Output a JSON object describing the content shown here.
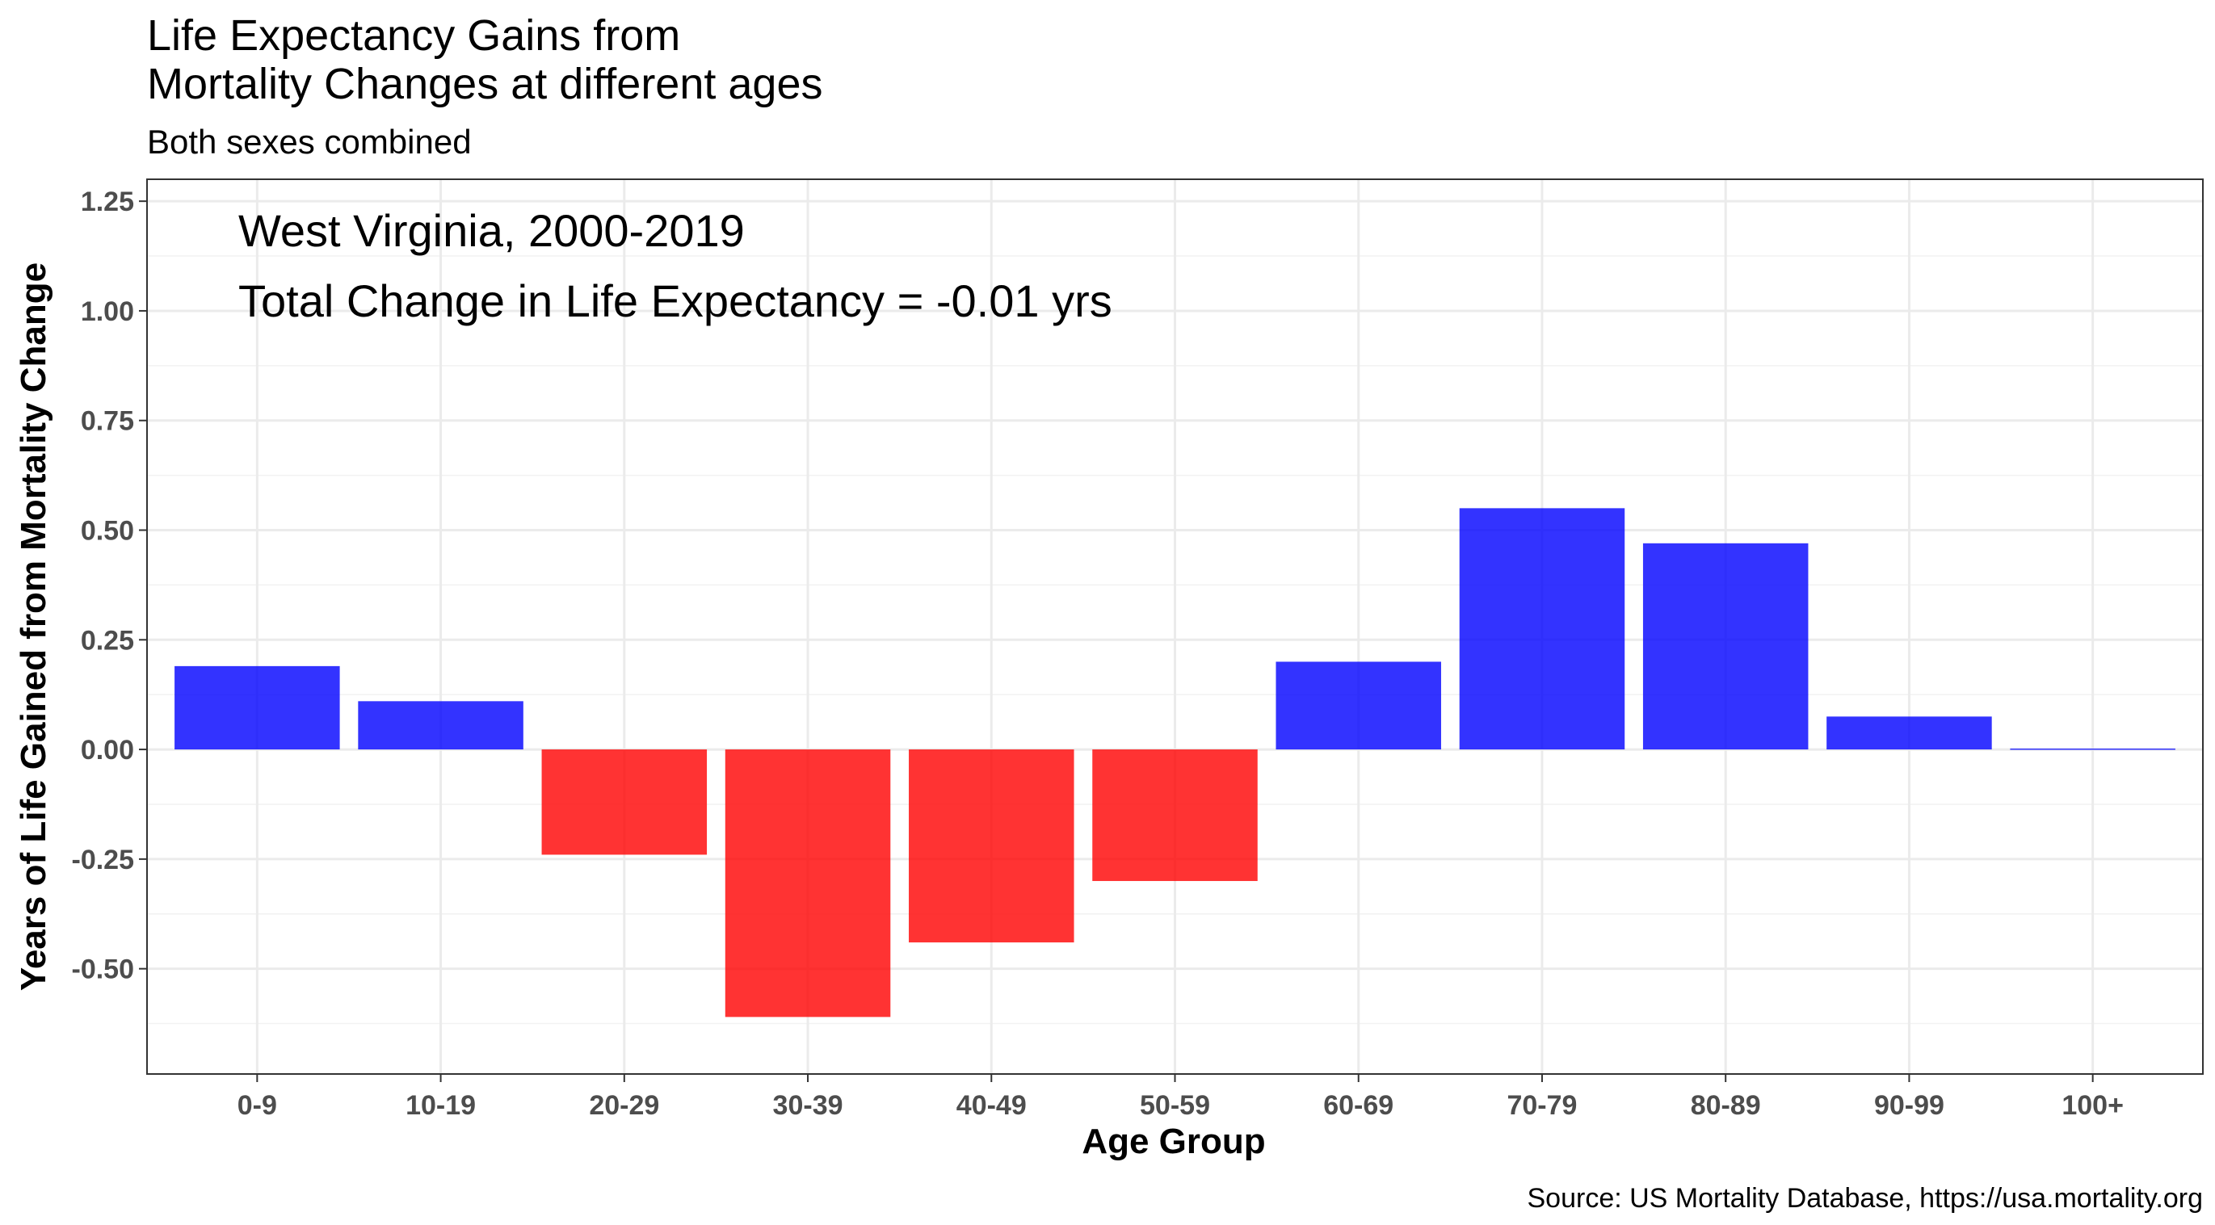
{
  "chart_data": {
    "type": "bar",
    "title_lines": [
      "Life Expectancy Gains from",
      "Mortality Changes at different ages"
    ],
    "subtitle": "Both sexes combined",
    "annotations": [
      "West Virginia, 2000-2019",
      "Total Change in Life Expectancy = -0.01 yrs"
    ],
    "xlabel": "Age Group",
    "ylabel": "Years of Life Gained from Mortality Change",
    "caption": "Source: US Mortality Database, https://usa.mortality.org",
    "categories": [
      "0-9",
      "10-19",
      "20-29",
      "30-39",
      "40-49",
      "50-59",
      "60-69",
      "70-79",
      "80-89",
      "90-99",
      "100+"
    ],
    "values": [
      0.19,
      0.11,
      -0.24,
      -0.61,
      -0.44,
      -0.3,
      0.2,
      0.55,
      0.47,
      0.075,
      0.002
    ],
    "ylim": [
      -0.74,
      1.3
    ],
    "yticks": [
      1.25,
      1.0,
      0.75,
      0.5,
      0.25,
      0.0,
      -0.25,
      -0.5
    ],
    "ytick_labels": [
      "1.25",
      "1.00",
      "0.75",
      "0.50",
      "0.25",
      "0.00",
      "-0.25",
      "-0.50"
    ],
    "grid": true,
    "colors": {
      "positive": "#0000ff",
      "negative": "#ff0000"
    },
    "bar_opacity": 0.8
  }
}
